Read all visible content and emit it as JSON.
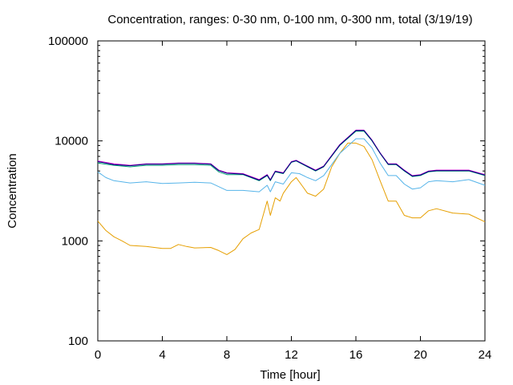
{
  "chart_data": {
    "type": "line",
    "title": "Concentration, ranges: 0-30 nm, 0-100 nm, 0-300 nm, total (3/19/19)",
    "xlabel": "Time [hour]",
    "ylabel": "Concentration",
    "xlim": [
      0,
      24
    ],
    "ylim": [
      100,
      100000
    ],
    "yscale": "log",
    "grid": false,
    "legend": "none",
    "x_ticks": [
      0,
      4,
      8,
      12,
      16,
      20,
      24
    ],
    "x_tick_labels": [
      "0",
      "4",
      "8",
      "12",
      "16",
      "20",
      "24"
    ],
    "y_ticks": [
      100,
      1000,
      10000,
      100000
    ],
    "y_tick_labels": [
      "100",
      "1000",
      "10000",
      "100000"
    ],
    "series": [
      {
        "color": "#e69f00",
        "points": [
          [
            0,
            1580
          ],
          [
            0.5,
            1270
          ],
          [
            1,
            1100
          ],
          [
            1.5,
            1000
          ],
          [
            2,
            900
          ],
          [
            3,
            880
          ],
          [
            4,
            840
          ],
          [
            4.5,
            840
          ],
          [
            5,
            920
          ],
          [
            5.5,
            880
          ],
          [
            6,
            850
          ],
          [
            7,
            860
          ],
          [
            7.5,
            800
          ],
          [
            8,
            730
          ],
          [
            8.5,
            820
          ],
          [
            9,
            1050
          ],
          [
            9.5,
            1200
          ],
          [
            10,
            1300
          ],
          [
            10.5,
            2500
          ],
          [
            10.7,
            1800
          ],
          [
            11,
            2700
          ],
          [
            11.3,
            2500
          ],
          [
            11.5,
            3000
          ],
          [
            12,
            3900
          ],
          [
            12.3,
            4300
          ],
          [
            12.7,
            3500
          ],
          [
            13,
            3000
          ],
          [
            13.5,
            2800
          ],
          [
            14,
            3300
          ],
          [
            14.5,
            5500
          ],
          [
            15,
            7500
          ],
          [
            15.5,
            9500
          ],
          [
            16,
            9500
          ],
          [
            16.5,
            8800
          ],
          [
            17,
            6500
          ],
          [
            17.5,
            4000
          ],
          [
            18,
            2500
          ],
          [
            18.5,
            2500
          ],
          [
            19,
            1800
          ],
          [
            19.5,
            1700
          ],
          [
            20,
            1700
          ],
          [
            20.5,
            2000
          ],
          [
            21,
            2100
          ],
          [
            22,
            1900
          ],
          [
            23,
            1850
          ],
          [
            24,
            1550
          ]
        ]
      },
      {
        "color": "#56b4e9",
        "points": [
          [
            0,
            4900
          ],
          [
            0.5,
            4300
          ],
          [
            1,
            4000
          ],
          [
            2,
            3800
          ],
          [
            3,
            3900
          ],
          [
            4,
            3750
          ],
          [
            5,
            3800
          ],
          [
            6,
            3850
          ],
          [
            7,
            3800
          ],
          [
            8,
            3200
          ],
          [
            9,
            3200
          ],
          [
            10,
            3100
          ],
          [
            10.5,
            3600
          ],
          [
            10.7,
            3100
          ],
          [
            11,
            3900
          ],
          [
            11.5,
            3700
          ],
          [
            12,
            4800
          ],
          [
            12.5,
            4700
          ],
          [
            13,
            4300
          ],
          [
            13.5,
            4000
          ],
          [
            14,
            4500
          ],
          [
            15,
            7500
          ],
          [
            16,
            10500
          ],
          [
            16.5,
            10500
          ],
          [
            17,
            8500
          ],
          [
            17.5,
            6000
          ],
          [
            18,
            4500
          ],
          [
            18.5,
            4500
          ],
          [
            19,
            3700
          ],
          [
            19.5,
            3300
          ],
          [
            20,
            3400
          ],
          [
            20.5,
            3900
          ],
          [
            21,
            4000
          ],
          [
            22,
            3900
          ],
          [
            23,
            4100
          ],
          [
            24,
            3600
          ]
        ]
      },
      {
        "color": "#009e73",
        "points": [
          [
            0,
            6000
          ],
          [
            1,
            5700
          ],
          [
            2,
            5500
          ],
          [
            3,
            5700
          ],
          [
            4,
            5700
          ],
          [
            5,
            5800
          ],
          [
            6,
            5800
          ],
          [
            7,
            5700
          ],
          [
            7.5,
            4900
          ],
          [
            8,
            4600
          ],
          [
            9,
            4600
          ],
          [
            10,
            4000
          ],
          [
            10.5,
            4500
          ],
          [
            10.7,
            4000
          ],
          [
            11,
            4900
          ],
          [
            11.5,
            4700
          ],
          [
            12,
            6100
          ],
          [
            12.3,
            6300
          ],
          [
            13,
            5500
          ],
          [
            13.5,
            5000
          ],
          [
            14,
            5500
          ],
          [
            15,
            9000
          ],
          [
            16,
            12500
          ],
          [
            16.5,
            12500
          ],
          [
            17,
            10000
          ],
          [
            17.5,
            7500
          ],
          [
            18,
            5800
          ],
          [
            18.5,
            5800
          ],
          [
            19,
            5000
          ],
          [
            19.5,
            4400
          ],
          [
            20,
            4500
          ],
          [
            20.5,
            4900
          ],
          [
            21,
            5000
          ],
          [
            22,
            5000
          ],
          [
            23,
            5000
          ],
          [
            24,
            4500
          ]
        ]
      },
      {
        "color": "#cc00cc",
        "points": [
          [
            0,
            6300
          ],
          [
            1,
            5900
          ],
          [
            2,
            5700
          ],
          [
            3,
            5900
          ],
          [
            4,
            5900
          ],
          [
            5,
            6000
          ],
          [
            6,
            6000
          ],
          [
            7,
            5900
          ],
          [
            7.5,
            5100
          ],
          [
            8,
            4800
          ],
          [
            9,
            4700
          ],
          [
            10,
            4100
          ],
          [
            10.5,
            4600
          ],
          [
            10.7,
            4100
          ],
          [
            11,
            5000
          ],
          [
            11.5,
            4800
          ],
          [
            12,
            6200
          ],
          [
            12.3,
            6400
          ],
          [
            13,
            5600
          ],
          [
            13.5,
            5100
          ],
          [
            14,
            5600
          ],
          [
            15,
            9200
          ],
          [
            16,
            12800
          ],
          [
            16.5,
            12800
          ],
          [
            17,
            10200
          ],
          [
            17.5,
            7600
          ],
          [
            18,
            5900
          ],
          [
            18.5,
            5900
          ],
          [
            19,
            5100
          ],
          [
            19.5,
            4500
          ],
          [
            20,
            4600
          ],
          [
            20.5,
            5000
          ],
          [
            21,
            5100
          ],
          [
            22,
            5100
          ],
          [
            23,
            5100
          ],
          [
            24,
            4600
          ]
        ]
      },
      {
        "color": "#000080",
        "points": [
          [
            0,
            6200
          ],
          [
            1,
            5800
          ],
          [
            2,
            5650
          ],
          [
            3,
            5850
          ],
          [
            4,
            5850
          ],
          [
            5,
            5950
          ],
          [
            6,
            5950
          ],
          [
            7,
            5850
          ],
          [
            7.5,
            5050
          ],
          [
            8,
            4750
          ],
          [
            9,
            4650
          ],
          [
            10,
            4050
          ],
          [
            10.5,
            4550
          ],
          [
            10.7,
            4050
          ],
          [
            11,
            4950
          ],
          [
            11.5,
            4750
          ],
          [
            12,
            6150
          ],
          [
            12.3,
            6350
          ],
          [
            13,
            5550
          ],
          [
            13.5,
            5050
          ],
          [
            14,
            5550
          ],
          [
            15,
            9100
          ],
          [
            16,
            12700
          ],
          [
            16.5,
            12700
          ],
          [
            17,
            10100
          ],
          [
            17.5,
            7550
          ],
          [
            18,
            5850
          ],
          [
            18.5,
            5850
          ],
          [
            19,
            5050
          ],
          [
            19.5,
            4450
          ],
          [
            20,
            4550
          ],
          [
            20.5,
            4950
          ],
          [
            21,
            5050
          ],
          [
            22,
            5050
          ],
          [
            23,
            5050
          ],
          [
            24,
            4550
          ]
        ]
      }
    ]
  }
}
